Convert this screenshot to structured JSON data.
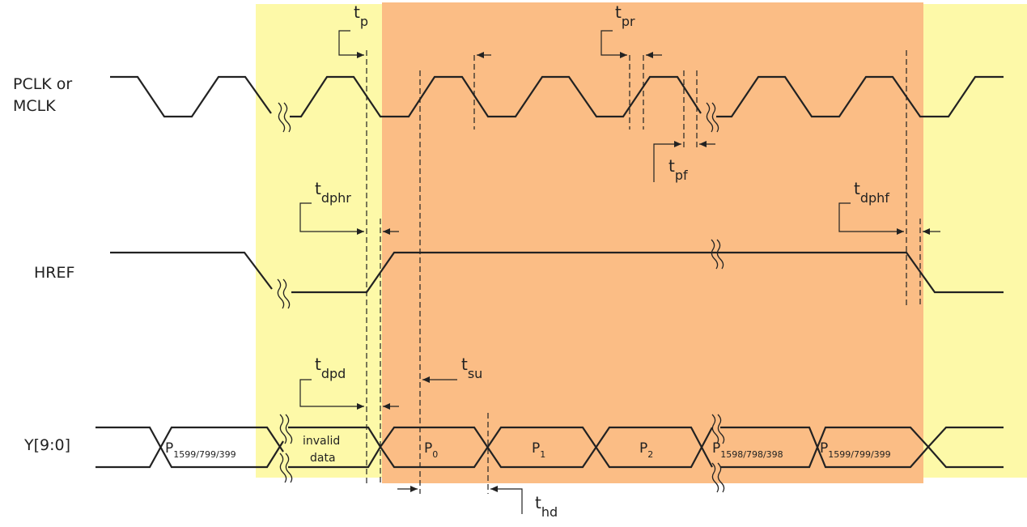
{
  "signals": {
    "pclk": [
      "PCLK or",
      "MCLK"
    ],
    "href": "HREF",
    "y": "Y[9:0]"
  },
  "timings": {
    "tp": {
      "base": "t",
      "sub": "p"
    },
    "tpr": {
      "base": "t",
      "sub": "pr"
    },
    "tpf": {
      "base": "t",
      "sub": "pf"
    },
    "tdphr": {
      "base": "t",
      "sub": "dphr"
    },
    "tdphf": {
      "base": "t",
      "sub": "dphf"
    },
    "tdpd": {
      "base": "t",
      "sub": "dpd"
    },
    "tsu": {
      "base": "t",
      "sub": "su"
    },
    "thd": {
      "base": "t",
      "sub": "hd"
    }
  },
  "data_cells": {
    "p_first_last": {
      "base": "P",
      "sub": "1599/799/399"
    },
    "invalid": [
      "invalid",
      "data"
    ],
    "p0": {
      "base": "P",
      "sub": "0"
    },
    "p1": {
      "base": "P",
      "sub": "1"
    },
    "p2": {
      "base": "P",
      "sub": "2"
    },
    "p_penult": {
      "base": "P",
      "sub": "1598/798/398"
    },
    "p_last": {
      "base": "P",
      "sub": "1599/799/399"
    }
  },
  "colors": {
    "blanking_region": "#fdf9a8",
    "active_region": "#fbbd85",
    "line": "#222222"
  }
}
